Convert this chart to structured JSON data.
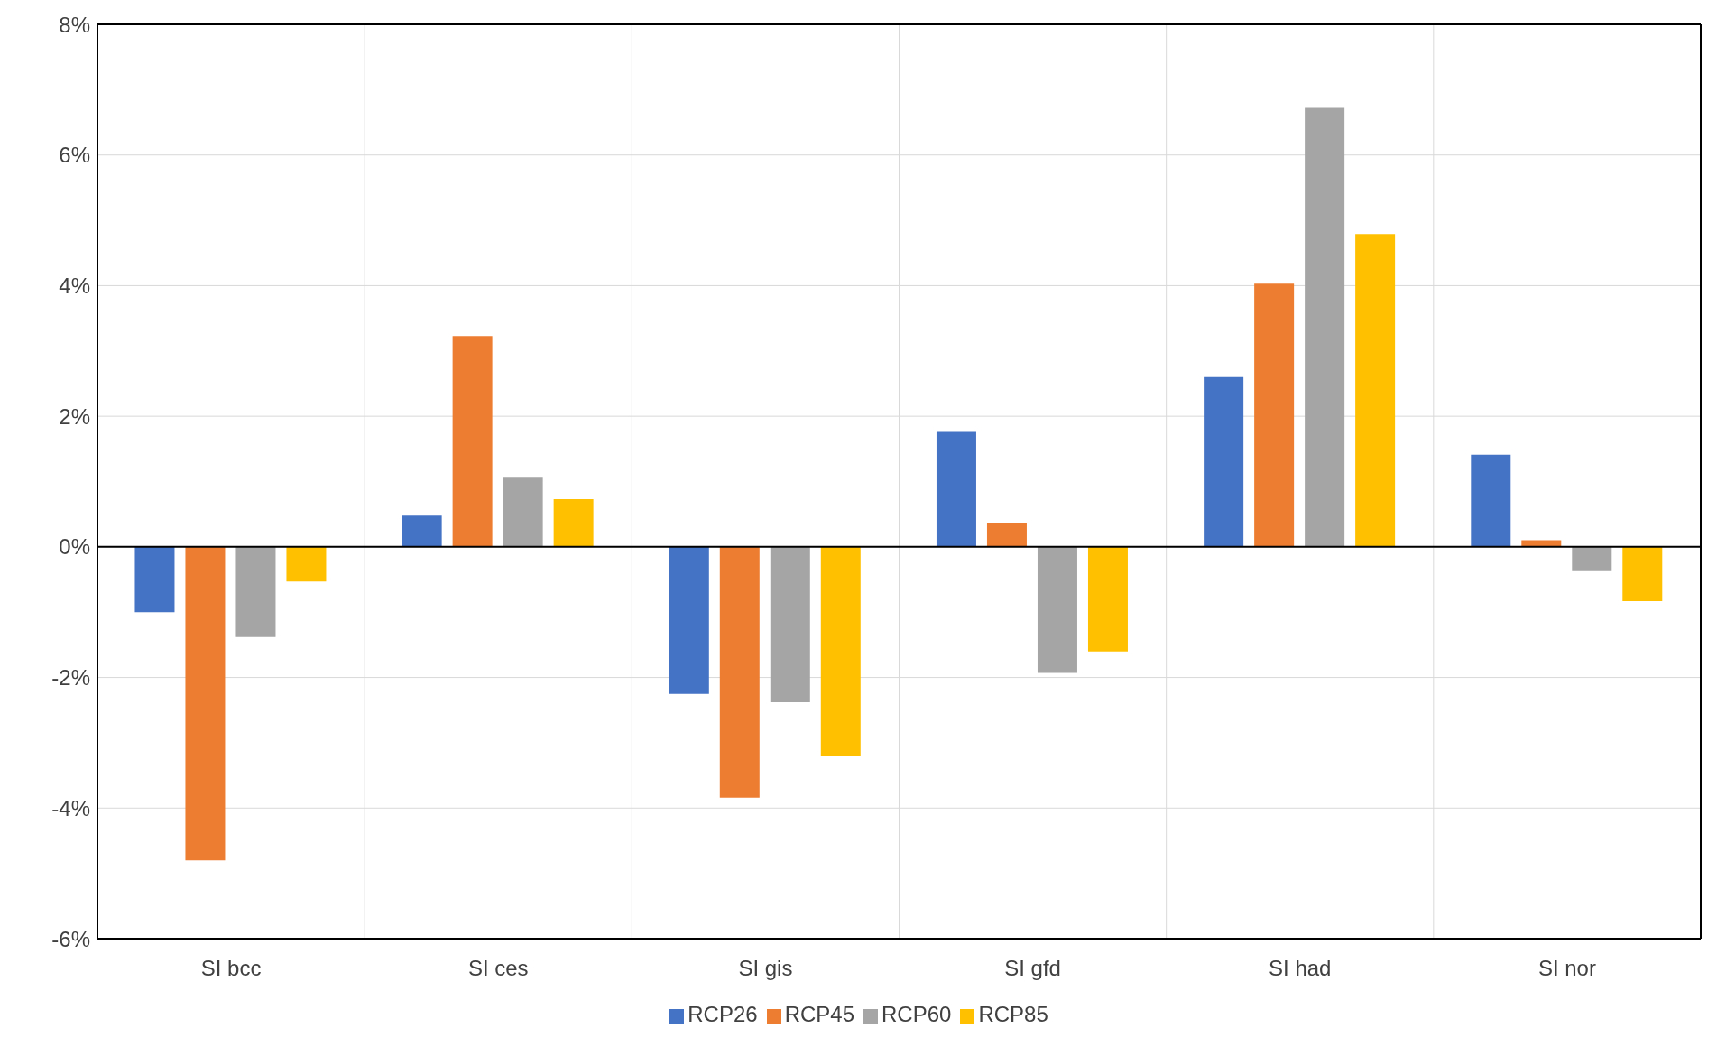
{
  "chart_data": {
    "type": "bar",
    "categories": [
      "SI bcc",
      "SI ces",
      "SI gis",
      "SI gfd",
      "SI had",
      "SI nor"
    ],
    "series": [
      {
        "name": "RCP26",
        "color": "#4472c4",
        "values": [
          -1.0,
          0.48,
          -2.25,
          1.76,
          2.6,
          1.41
        ]
      },
      {
        "name": "RCP45",
        "color": "#ed7d31",
        "values": [
          -4.8,
          3.23,
          -3.84,
          0.37,
          4.03,
          0.1
        ]
      },
      {
        "name": "RCP60",
        "color": "#a5a5a5",
        "values": [
          -1.38,
          1.06,
          -2.38,
          -1.93,
          6.72,
          -0.37
        ]
      },
      {
        "name": "RCP85",
        "color": "#ffc000",
        "values": [
          -0.53,
          0.73,
          -3.21,
          -1.6,
          4.79,
          -0.83
        ]
      }
    ],
    "ylim": [
      -6,
      8
    ],
    "yticks": [
      {
        "value": -6,
        "label": "-6%"
      },
      {
        "value": -4,
        "label": "-4%"
      },
      {
        "value": -2,
        "label": "-2%"
      },
      {
        "value": 0,
        "label": "0%"
      },
      {
        "value": 2,
        "label": "2%"
      },
      {
        "value": 4,
        "label": "4%"
      },
      {
        "value": 6,
        "label": "6%"
      },
      {
        "value": 8,
        "label": "8%"
      }
    ],
    "grid": true,
    "legend": "bottom"
  }
}
